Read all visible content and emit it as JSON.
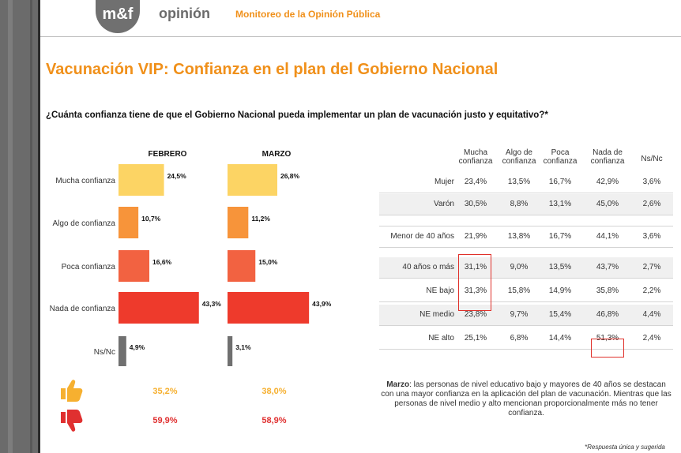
{
  "header": {
    "logo": "m&f",
    "brand": "opinión",
    "subtitle": "Monitoreo de la Opinión Pública"
  },
  "title": "Vacunación VIP: Confianza en el plan del Gobierno Nacional",
  "question": "¿Cuánta confianza tiene de que el Gobierno Nacional pueda implementar un plan de vacunación justo y equitativo?*",
  "chart_data": {
    "type": "bar",
    "orientation": "horizontal",
    "categories": [
      "Mucha confianza",
      "Algo de confianza",
      "Poca confianza",
      "Nada de confianza",
      "Ns/Nc"
    ],
    "series": [
      {
        "name": "FEBRERO",
        "values": [
          24.5,
          10.7,
          16.6,
          43.3,
          4.9
        ],
        "labels": [
          "24,5%",
          "10,7%",
          "16,6%",
          "43,3%",
          "4,9%"
        ]
      },
      {
        "name": "MARZO",
        "values": [
          26.8,
          11.2,
          15.0,
          43.9,
          3.1
        ],
        "labels": [
          "26,8%",
          "11,2%",
          "15,0%",
          "43,9%",
          "3,1%"
        ]
      }
    ],
    "colors": [
      "#fcd464",
      "#f7943a",
      "#f26241",
      "#ee3a2c",
      "#707070"
    ],
    "summary": {
      "positive": [
        "35,2%",
        "38,0%"
      ],
      "negative": [
        "59,9%",
        "58,9%"
      ],
      "positive_color": "#f6b030",
      "negative_color": "#e03030"
    }
  },
  "table": {
    "headers": [
      "Mucha confianza",
      "Algo de confianza",
      "Poca confianza",
      "Nada de confianza",
      "Ns/Nc"
    ],
    "rows": [
      {
        "label": "Mujer",
        "values": [
          "23,4%",
          "13,5%",
          "16,7%",
          "42,9%",
          "3,6%"
        ]
      },
      {
        "label": "Varón",
        "values": [
          "30,5%",
          "8,8%",
          "13,1%",
          "45,0%",
          "2,6%"
        ]
      },
      {
        "label": "Menor de 40 años",
        "values": [
          "21,9%",
          "13,8%",
          "16,7%",
          "44,1%",
          "3,6%"
        ]
      },
      {
        "label": "40 años o más",
        "values": [
          "31,1%",
          "9,0%",
          "13,5%",
          "43,7%",
          "2,7%"
        ]
      },
      {
        "label": "NE bajo",
        "values": [
          "31,3%",
          "15,8%",
          "14,9%",
          "35,8%",
          "2,2%"
        ]
      },
      {
        "label": "NE medio",
        "values": [
          "23,8%",
          "9,7%",
          "15,4%",
          "46,8%",
          "4,4%"
        ]
      },
      {
        "label": "NE alto",
        "values": [
          "25,1%",
          "6,8%",
          "14,4%",
          "51,3%",
          "2,4%"
        ]
      }
    ]
  },
  "note": {
    "bold": "Marzo",
    "text": ": las personas de nivel educativo bajo y mayores de 40 años se destacan con una mayor confianza en la aplicación del plan de vacunación. Mientras que las personas de nivel medio y alto mencionan proporcionalmente más no tener confianza."
  },
  "footnote": "*Respuesta única y sugerida"
}
